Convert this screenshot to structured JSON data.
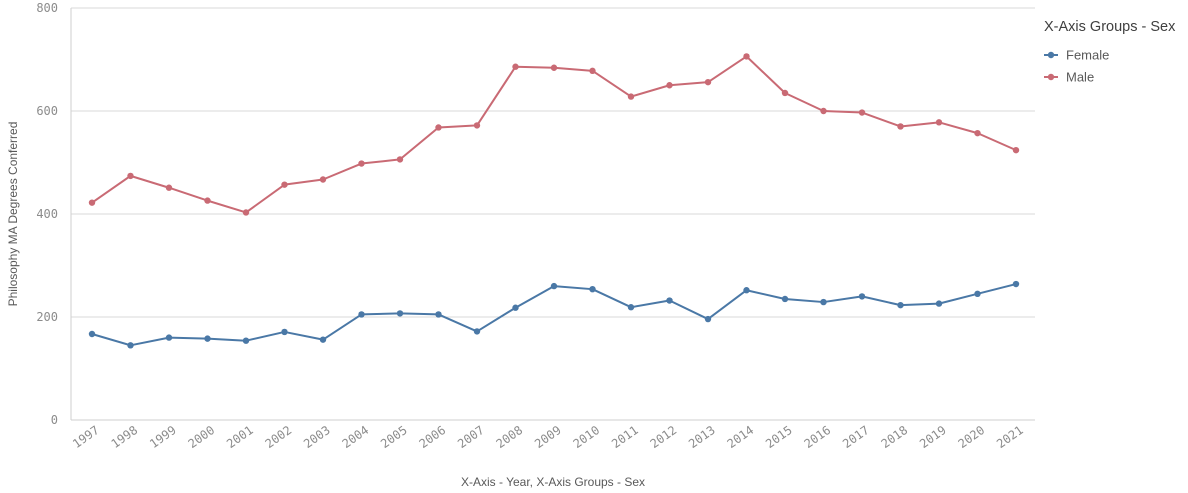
{
  "chart_data": {
    "type": "line",
    "xlabel": "X-Axis - Year, X-Axis Groups - Sex",
    "ylabel": "Philosophy MA Degrees Conferred",
    "ylim": [
      0,
      800
    ],
    "yticks": [
      0,
      200,
      400,
      600,
      800
    ],
    "grid": true,
    "legend_position": "right",
    "legend_title": "X-Axis Groups - Sex",
    "categories": [
      "1997",
      "1998",
      "1999",
      "2000",
      "2001",
      "2002",
      "2003",
      "2004",
      "2005",
      "2006",
      "2007",
      "2008",
      "2009",
      "2010",
      "2011",
      "2012",
      "2013",
      "2014",
      "2015",
      "2016",
      "2017",
      "2018",
      "2019",
      "2020",
      "2021"
    ],
    "series": [
      {
        "name": "Female",
        "color": "#4a78a6",
        "values": [
          167,
          145,
          160,
          158,
          154,
          171,
          156,
          205,
          207,
          205,
          172,
          218,
          260,
          254,
          219,
          232,
          196,
          252,
          235,
          229,
          240,
          223,
          226,
          245,
          264
        ]
      },
      {
        "name": "Male",
        "color": "#c96a74",
        "values": [
          422,
          474,
          451,
          426,
          403,
          457,
          467,
          498,
          506,
          568,
          572,
          686,
          684,
          678,
          628,
          650,
          656,
          706,
          635,
          600,
          597,
          570,
          578,
          557,
          524
        ]
      }
    ]
  }
}
